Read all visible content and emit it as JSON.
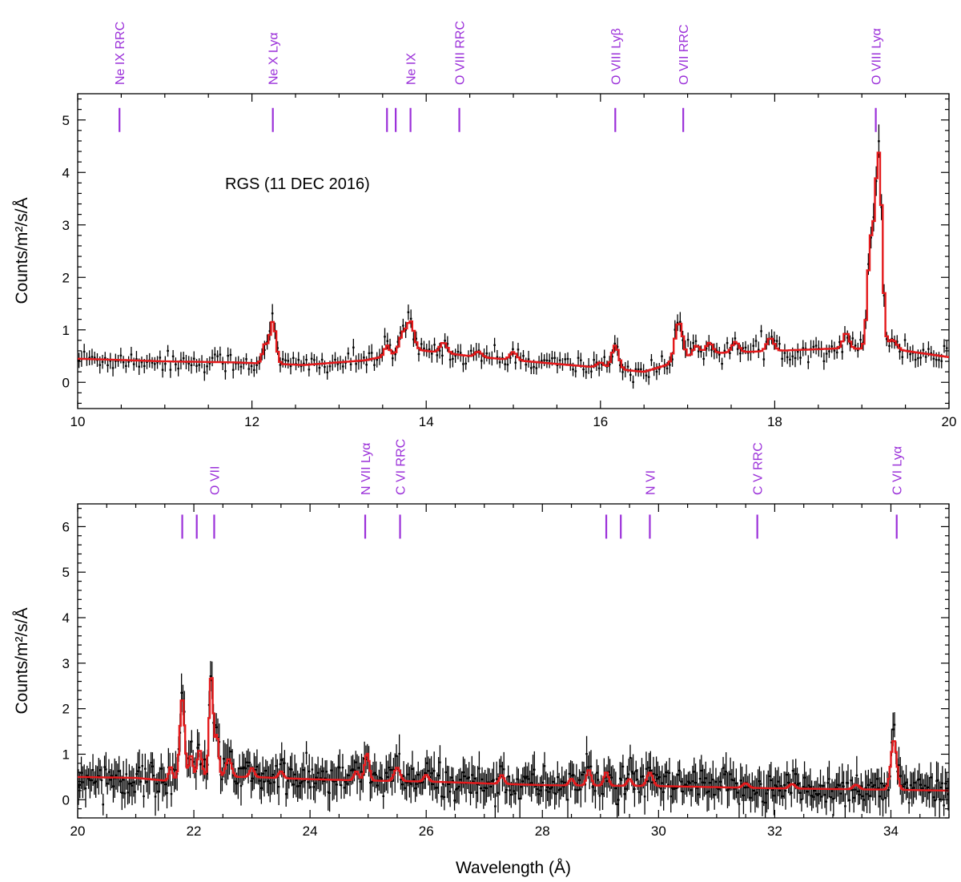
{
  "figure_title": "",
  "colors": {
    "data": "#000000",
    "model": "#e41a1c",
    "lines": "#9b30d9",
    "axis": "#000000"
  },
  "chart_data": [
    {
      "type": "line",
      "panel": "top",
      "annotation": "RGS (11 DEC 2016)",
      "ylabel": "Counts/m²/s/Å",
      "xlabel": "",
      "xlim": [
        10,
        20
      ],
      "ylim": [
        -0.5,
        5.5
      ],
      "xticks": [
        10,
        12,
        14,
        16,
        18,
        20
      ],
      "yticks": [
        0,
        1,
        2,
        3,
        4,
        5
      ],
      "line_marker_y": 5.0,
      "line_labels": [
        {
          "text": "Ne IX RRC",
          "x": 10.48
        },
        {
          "text": "Ne X Lyα",
          "x": 12.24
        },
        {
          "text": "Ne IX",
          "x": 13.82
        },
        {
          "text": "O VIII RRC",
          "x": 14.38
        },
        {
          "text": "O VIII Lyβ",
          "x": 16.17
        },
        {
          "text": "O VII RRC",
          "x": 16.95
        },
        {
          "text": "O VIII Lyα",
          "x": 19.16
        }
      ],
      "extra_markers": [
        13.55,
        13.65
      ],
      "continuum": [
        [
          10.0,
          0.45
        ],
        [
          11.0,
          0.4
        ],
        [
          11.8,
          0.38
        ],
        [
          12.6,
          0.33
        ],
        [
          13.3,
          0.42
        ],
        [
          13.9,
          0.62
        ],
        [
          14.5,
          0.5
        ],
        [
          15.5,
          0.35
        ],
        [
          16.0,
          0.28
        ],
        [
          16.5,
          0.2
        ],
        [
          16.8,
          0.35
        ],
        [
          17.2,
          0.55
        ],
        [
          18.0,
          0.6
        ],
        [
          18.8,
          0.65
        ],
        [
          19.5,
          0.6
        ],
        [
          20.0,
          0.48
        ]
      ],
      "model_lines": [
        {
          "center": 12.15,
          "sigma": 0.03,
          "amp": 0.35
        },
        {
          "center": 12.24,
          "sigma": 0.035,
          "amp": 0.8
        },
        {
          "center": 13.55,
          "sigma": 0.03,
          "amp": 0.2
        },
        {
          "center": 13.73,
          "sigma": 0.04,
          "amp": 0.35
        },
        {
          "center": 13.82,
          "sigma": 0.04,
          "amp": 0.55
        },
        {
          "center": 14.2,
          "sigma": 0.04,
          "amp": 0.2
        },
        {
          "center": 14.6,
          "sigma": 0.04,
          "amp": 0.1
        },
        {
          "center": 15.0,
          "sigma": 0.04,
          "amp": 0.15
        },
        {
          "center": 16.0,
          "sigma": 0.04,
          "amp": 0.1
        },
        {
          "center": 16.17,
          "sigma": 0.04,
          "amp": 0.45
        },
        {
          "center": 16.9,
          "sigma": 0.045,
          "amp": 0.75
        },
        {
          "center": 17.1,
          "sigma": 0.04,
          "amp": 0.2
        },
        {
          "center": 17.25,
          "sigma": 0.04,
          "amp": 0.2
        },
        {
          "center": 17.55,
          "sigma": 0.04,
          "amp": 0.2
        },
        {
          "center": 17.95,
          "sigma": 0.04,
          "amp": 0.25
        },
        {
          "center": 18.82,
          "sigma": 0.035,
          "amp": 0.3
        },
        {
          "center": 19.1,
          "sigma": 0.035,
          "amp": 1.9
        },
        {
          "center": 19.18,
          "sigma": 0.035,
          "amp": 2.9
        },
        {
          "center": 19.22,
          "sigma": 0.03,
          "amp": 1.5
        },
        {
          "center": 19.35,
          "sigma": 0.05,
          "amp": 0.2
        }
      ],
      "data_step": 0.03,
      "data_noise": 0.18,
      "data_err": [
        0.09,
        0.15
      ],
      "data_peak_boost": 0.1
    },
    {
      "type": "line",
      "panel": "bottom",
      "ylabel": "Counts/m²/s/Å",
      "xlabel": "Wavelength (Å)",
      "xlim": [
        20,
        35
      ],
      "ylim": [
        -0.4,
        6.5
      ],
      "xticks": [
        20,
        22,
        24,
        26,
        28,
        30,
        32,
        34
      ],
      "yticks": [
        0,
        1,
        2,
        3,
        4,
        5,
        6
      ],
      "line_marker_y": 6.0,
      "line_labels": [
        {
          "text": "O VII",
          "x": 22.35
        },
        {
          "text": "N VII Lyα",
          "x": 24.95
        },
        {
          "text": "C VI RRC",
          "x": 25.55
        },
        {
          "text": "N VI",
          "x": 29.85
        },
        {
          "text": "C V RRC",
          "x": 31.7
        },
        {
          "text": "C VI Lyα",
          "x": 34.1
        }
      ],
      "extra_markers": [
        21.8,
        22.05,
        29.1,
        29.35
      ],
      "continuum": [
        [
          20.0,
          0.5
        ],
        [
          21.0,
          0.48
        ],
        [
          21.5,
          0.42
        ],
        [
          22.0,
          0.5
        ],
        [
          23.0,
          0.5
        ],
        [
          24.0,
          0.45
        ],
        [
          25.0,
          0.42
        ],
        [
          26.0,
          0.4
        ],
        [
          28.0,
          0.32
        ],
        [
          30.0,
          0.3
        ],
        [
          32.0,
          0.25
        ],
        [
          34.0,
          0.22
        ],
        [
          35.0,
          0.2
        ]
      ],
      "model_lines": [
        {
          "center": 21.6,
          "sigma": 0.03,
          "amp": 0.3
        },
        {
          "center": 21.8,
          "sigma": 0.04,
          "amp": 1.8
        },
        {
          "center": 21.95,
          "sigma": 0.03,
          "amp": 0.5
        },
        {
          "center": 22.1,
          "sigma": 0.04,
          "amp": 0.6
        },
        {
          "center": 22.3,
          "sigma": 0.035,
          "amp": 2.3
        },
        {
          "center": 22.4,
          "sigma": 0.03,
          "amp": 0.9
        },
        {
          "center": 22.6,
          "sigma": 0.05,
          "amp": 0.4
        },
        {
          "center": 23.0,
          "sigma": 0.04,
          "amp": 0.2
        },
        {
          "center": 23.5,
          "sigma": 0.04,
          "amp": 0.15
        },
        {
          "center": 24.8,
          "sigma": 0.04,
          "amp": 0.2
        },
        {
          "center": 24.98,
          "sigma": 0.04,
          "amp": 0.6
        },
        {
          "center": 25.5,
          "sigma": 0.05,
          "amp": 0.3
        },
        {
          "center": 26.0,
          "sigma": 0.04,
          "amp": 0.15
        },
        {
          "center": 27.3,
          "sigma": 0.04,
          "amp": 0.2
        },
        {
          "center": 28.5,
          "sigma": 0.04,
          "amp": 0.15
        },
        {
          "center": 28.8,
          "sigma": 0.04,
          "amp": 0.35
        },
        {
          "center": 29.1,
          "sigma": 0.04,
          "amp": 0.3
        },
        {
          "center": 29.5,
          "sigma": 0.04,
          "amp": 0.15
        },
        {
          "center": 29.85,
          "sigma": 0.05,
          "amp": 0.3
        },
        {
          "center": 31.5,
          "sigma": 0.05,
          "amp": 0.1
        },
        {
          "center": 32.3,
          "sigma": 0.05,
          "amp": 0.1
        },
        {
          "center": 33.4,
          "sigma": 0.05,
          "amp": 0.1
        },
        {
          "center": 34.05,
          "sigma": 0.05,
          "amp": 1.1
        }
      ],
      "data_step": 0.025,
      "data_noise": 0.32,
      "data_err": [
        0.2,
        0.42
      ],
      "data_peak_boost": 0.25
    }
  ]
}
